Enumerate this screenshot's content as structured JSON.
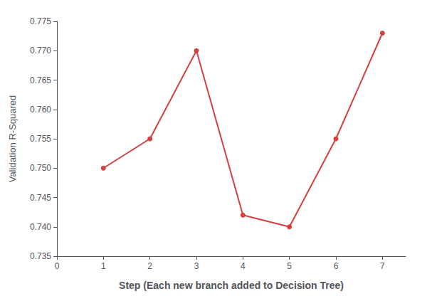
{
  "chart_data": {
    "type": "line",
    "xlabel": "Step (Each new branch added to Decision Tree)",
    "ylabel": "Validation R-Squared",
    "x": [
      1,
      2,
      3,
      4,
      5,
      6,
      7
    ],
    "values": [
      0.75,
      0.755,
      0.77,
      0.742,
      0.74,
      0.755,
      0.773
    ],
    "color": "#d44040",
    "marker": "circle",
    "xlim": [
      0,
      7.5
    ],
    "ylim": [
      0.735,
      0.775
    ],
    "xticks": [
      0,
      1,
      2,
      3,
      4,
      5,
      6,
      7
    ],
    "yticks": [
      0.735,
      {
        "value": 0.74,
        "label": "0.740"
      },
      0.745,
      {
        "value": 0.75,
        "label": "0.750"
      },
      0.755,
      {
        "value": 0.76,
        "label": "0.760"
      },
      0.765,
      {
        "value": 0.77,
        "label": "0.770"
      },
      0.775
    ],
    "grid": false
  }
}
